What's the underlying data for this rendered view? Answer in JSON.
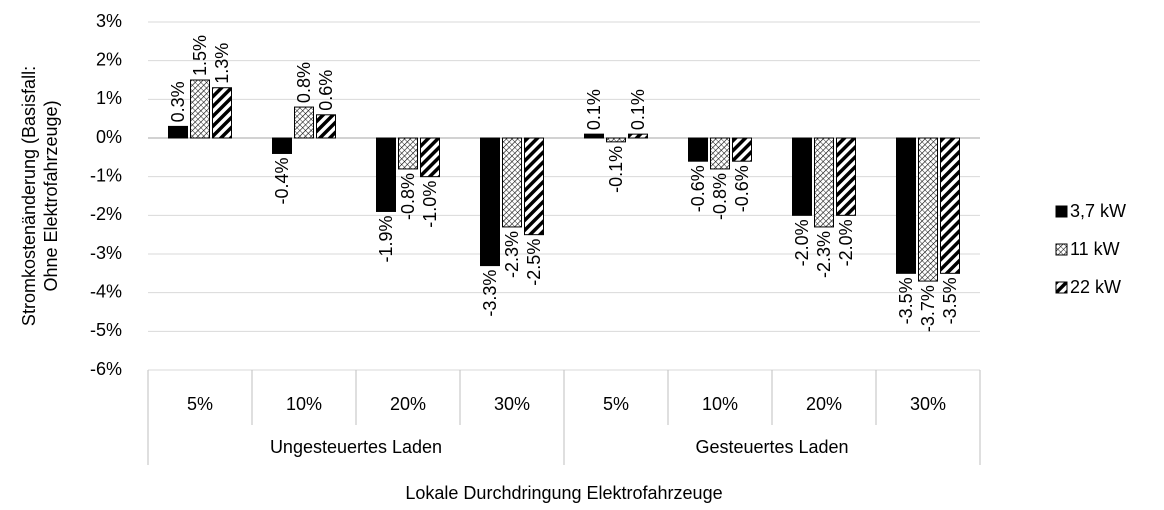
{
  "chart_data": {
    "type": "bar",
    "ylabel": [
      "Stromkostenänderung (Basisfall:",
      "Ohne Elektrofahrzeuge)"
    ],
    "xlabel": "Lokale Durchdringung Elektrofahrzeuge",
    "groups": [
      {
        "name": "Ungesteuertes Laden",
        "categories": [
          "5%",
          "10%",
          "20%",
          "30%"
        ]
      },
      {
        "name": "Gesteuertes Laden",
        "categories": [
          "5%",
          "10%",
          "20%",
          "30%"
        ]
      }
    ],
    "series": [
      {
        "name": "3,7 kW",
        "color": "#000000",
        "pattern": "solid",
        "values": [
          0.3,
          -0.4,
          -1.9,
          -3.3,
          0.1,
          -0.6,
          -2.0,
          -3.5
        ],
        "value_labels": [
          "0.3%",
          "-0.4%",
          "-1.9%",
          "-3.3%",
          "0.1%",
          "-0.6%",
          "-2.0%",
          "-3.5%"
        ]
      },
      {
        "name": "11 kW",
        "color": "#000000",
        "pattern": "crosshatch",
        "values": [
          1.5,
          0.8,
          -0.8,
          -2.3,
          -0.1,
          -0.8,
          -2.3,
          -3.7
        ],
        "value_labels": [
          "1.5%",
          "0.8%",
          "-0.8%",
          "-2.3%",
          "-0.1%",
          "-0.8%",
          "-2.3%",
          "-3.7%"
        ]
      },
      {
        "name": "22 kW",
        "color": "#000000",
        "pattern": "diagonal",
        "values": [
          1.3,
          0.6,
          -1.0,
          -2.5,
          0.1,
          -0.6,
          -2.0,
          -3.5
        ],
        "value_labels": [
          "1.3%",
          "0.6%",
          "-1.0%",
          "-2.5%",
          "0.1%",
          "-0.6%",
          "-2.0%",
          "-3.5%"
        ]
      }
    ],
    "ylim": [
      -6,
      3
    ],
    "yticks": [
      {
        "value": -6,
        "label": "-6%"
      },
      {
        "value": -5,
        "label": "-5%"
      },
      {
        "value": -4,
        "label": "-4%"
      },
      {
        "value": -3,
        "label": "-3%"
      },
      {
        "value": -2,
        "label": "-2%"
      },
      {
        "value": -1,
        "label": "-1%"
      },
      {
        "value": 0,
        "label": "0%"
      },
      {
        "value": 1,
        "label": "1%"
      },
      {
        "value": 2,
        "label": "2%"
      },
      {
        "value": 3,
        "label": "3%"
      }
    ],
    "grid": true,
    "legend": "right"
  }
}
